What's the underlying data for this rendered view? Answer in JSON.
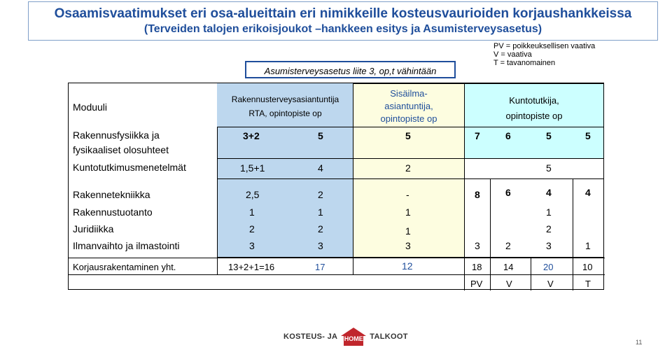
{
  "title": {
    "line1": "Osaamisvaatimukset eri osa-alueittain eri nimikkeille kosteusvaurioiden korjaushankkeissa",
    "line2": "(Terveiden talojen erikoisjoukot –hankkeen esitys ja Asumisterveysasetus)"
  },
  "legend": [
    "PV = poikkeuksellisen vaativa",
    "V = vaativa",
    "T = tavanomainen"
  ],
  "asum_note": "Asumisterveysasetus liite 3, op,t vähintään",
  "headers": {
    "module": "Moduuli",
    "rta_line1": "Rakennusterveysasiantuntija",
    "rta_line2": "RTA, opintopiste op",
    "sis_line1": "Sisäilma-",
    "sis_line2": "asiantuntija,",
    "sis_line3": "opintopiste op",
    "kun_line1": "Kuntotutkija,",
    "kun_line2": "opintopiste op"
  },
  "rows": [
    {
      "label1": "Rakennusfysiikka ja",
      "label2": "fysikaaliset olosuhteet",
      "a": "3+2",
      "b": "5",
      "c": "5",
      "d": "7",
      "e": "6",
      "f": "5",
      "g": "5"
    },
    {
      "label1": "Kuntotutkimusmenetelmät",
      "a": "1,5+1",
      "b": "4",
      "c": "2",
      "f": "5"
    },
    {
      "label1": "Rakennetekniikka",
      "a": "2,5",
      "b": "2",
      "c": "-",
      "d": "8",
      "e": "6",
      "f": "4",
      "g": "4"
    },
    {
      "label1": "Rakennustuotanto",
      "a": "1",
      "b": "1",
      "c": "1",
      "f": "1"
    },
    {
      "label1": "Juridiikka",
      "a": "2",
      "b": "2",
      "c": "1",
      "f": "2"
    },
    {
      "label1": "Ilmanvaihto ja ilmastointi",
      "a": "3",
      "b": "3",
      "c": "3",
      "d": "3",
      "e": "2",
      "f": "3",
      "g": "1"
    },
    {
      "label1": "Korjausrakentaminen yht.",
      "a": "13+2+1=16",
      "b": "17",
      "c": "12",
      "d": "18",
      "e": "14",
      "f": "20",
      "g": "10"
    },
    {
      "d": "PV",
      "e": "V",
      "f": "V",
      "g": "T"
    }
  ],
  "logo": {
    "left": "KOSTEUS- JA",
    "middle": "HOME",
    "right": "TALKOOT"
  },
  "page_number": "11"
}
